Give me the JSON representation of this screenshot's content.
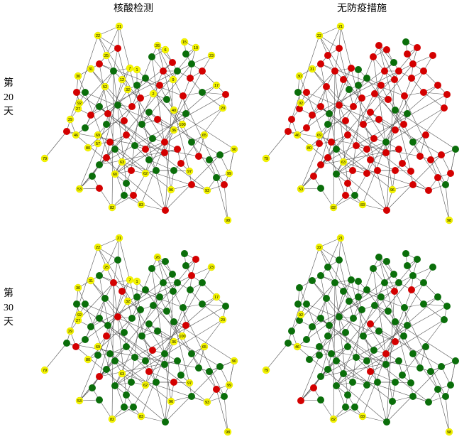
{
  "columns": [
    "核酸检测",
    "无防疫措施"
  ],
  "rows": [
    {
      "label": [
        "第",
        "20",
        "天"
      ]
    },
    {
      "label": [
        "第",
        "30",
        "天"
      ]
    }
  ],
  "panels": [
    {
      "nodes": [
        "21",
        "22",
        "25",
        "26",
        "6",
        "15",
        "10",
        "23",
        "31",
        "7",
        "1",
        "30",
        "12",
        "9",
        "52",
        "32",
        "2",
        "17",
        "92",
        "27",
        "40",
        "20",
        "29",
        "100",
        "46",
        "69",
        "36",
        "65",
        "57",
        "80",
        "90",
        "79",
        "63",
        "62",
        "97",
        "60",
        "99",
        "96",
        "93",
        "53",
        "82",
        "83",
        "98"
      ]
    },
    {
      "nodes": [
        "21",
        "22",
        "31",
        "30",
        "92",
        "46",
        "69",
        "80",
        "79",
        "53",
        "63",
        "96",
        "82",
        "83",
        "98"
      ]
    },
    {
      "nodes": [
        "21",
        "22",
        "25",
        "26",
        "23",
        "31",
        "30",
        "7",
        "1",
        "32",
        "17",
        "92",
        "27",
        "20",
        "29",
        "69",
        "36",
        "100",
        "65",
        "80",
        "90",
        "79",
        "63",
        "62",
        "97",
        "99",
        "93",
        "53",
        "82",
        "83",
        "96",
        "98"
      ]
    },
    {
      "nodes": [
        "21",
        "22",
        "92",
        "46",
        "79",
        "82",
        "83",
        "98"
      ]
    }
  ]
}
